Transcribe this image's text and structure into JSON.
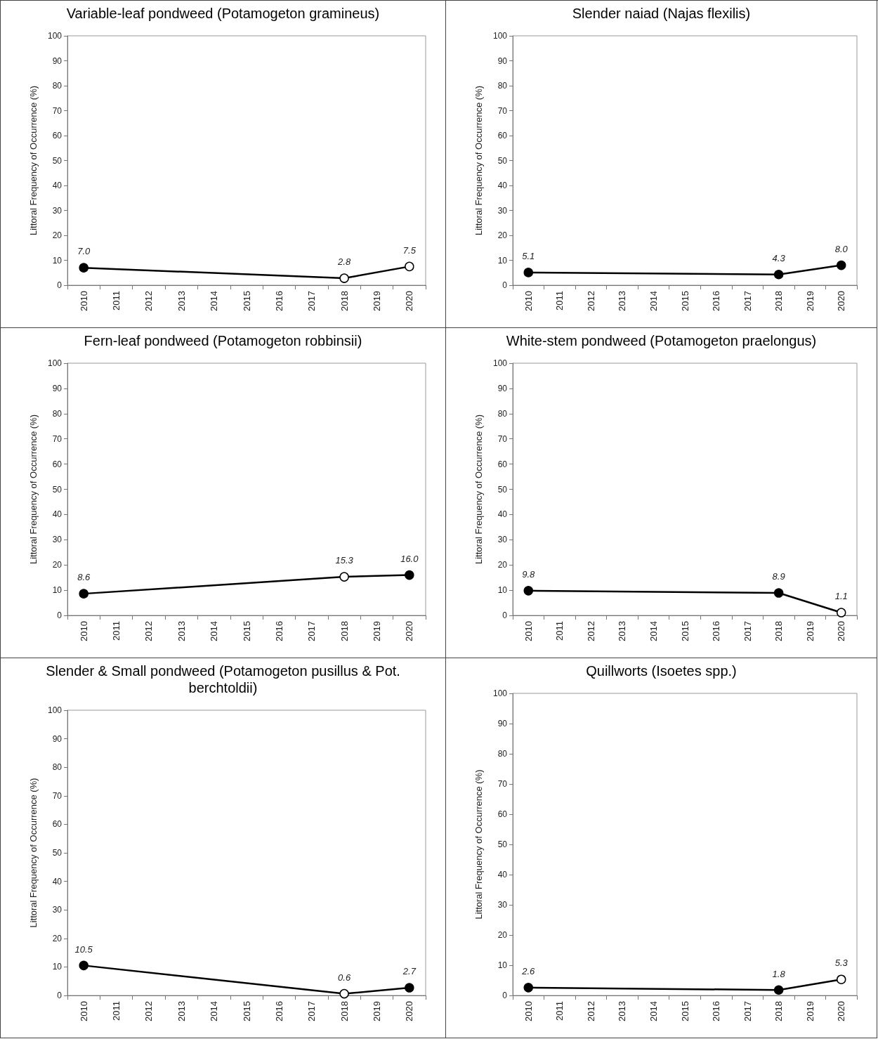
{
  "chart_data": [
    {
      "type": "line",
      "title": "Variable-leaf pondweed (Potamogeton gramineus)",
      "ylabel": "Littoral Frequency of Occurrence (%)",
      "categories": [
        "2010",
        "2011",
        "2012",
        "2013",
        "2014",
        "2015",
        "2016",
        "2017",
        "2018",
        "2019",
        "2020"
      ],
      "ylim": [
        0,
        100
      ],
      "yticks": [
        0,
        10,
        20,
        30,
        40,
        50,
        60,
        70,
        80,
        90,
        100
      ],
      "grid": false,
      "marker": "circle",
      "line_style": "solid",
      "series": [
        {
          "color": "#000000",
          "values": [
            7.0,
            null,
            null,
            null,
            null,
            null,
            null,
            null,
            2.8,
            null,
            7.5
          ],
          "colors": [
            "#000000",
            null,
            null,
            null,
            null,
            null,
            null,
            null,
            "#ffffff",
            null,
            "#ffffff"
          ],
          "value_labels": [
            "7.0",
            null,
            null,
            null,
            null,
            null,
            null,
            null,
            "2.8",
            null,
            "7.5"
          ]
        }
      ]
    },
    {
      "type": "line",
      "title": "Slender naiad (Najas flexilis)",
      "ylabel": "Littoral Frequency of Occurrence (%)",
      "categories": [
        "2010",
        "2011",
        "2012",
        "2013",
        "2014",
        "2015",
        "2016",
        "2017",
        "2018",
        "2019",
        "2020"
      ],
      "ylim": [
        0,
        100
      ],
      "yticks": [
        0,
        10,
        20,
        30,
        40,
        50,
        60,
        70,
        80,
        90,
        100
      ],
      "grid": false,
      "marker": "circle",
      "line_style": "solid",
      "series": [
        {
          "color": "#000000",
          "values": [
            5.1,
            null,
            null,
            null,
            null,
            null,
            null,
            null,
            4.3,
            null,
            8.0
          ],
          "colors": [
            "#000000",
            null,
            null,
            null,
            null,
            null,
            null,
            null,
            "#000000",
            null,
            "#000000"
          ],
          "value_labels": [
            "5.1",
            null,
            null,
            null,
            null,
            null,
            null,
            null,
            "4.3",
            null,
            "8.0"
          ]
        }
      ]
    },
    {
      "type": "line",
      "title": "Fern-leaf pondweed (Potamogeton robbinsii)",
      "ylabel": "Littoral Frequency of Occurrence (%)",
      "categories": [
        "2010",
        "2011",
        "2012",
        "2013",
        "2014",
        "2015",
        "2016",
        "2017",
        "2018",
        "2019",
        "2020"
      ],
      "ylim": [
        0,
        100
      ],
      "yticks": [
        0,
        10,
        20,
        30,
        40,
        50,
        60,
        70,
        80,
        90,
        100
      ],
      "grid": false,
      "marker": "circle",
      "line_style": "solid",
      "series": [
        {
          "color": "#000000",
          "values": [
            8.6,
            null,
            null,
            null,
            null,
            null,
            null,
            null,
            15.3,
            null,
            16.0
          ],
          "colors": [
            "#000000",
            null,
            null,
            null,
            null,
            null,
            null,
            null,
            "#ffffff",
            null,
            "#000000"
          ],
          "value_labels": [
            "8.6",
            null,
            null,
            null,
            null,
            null,
            null,
            null,
            "15.3",
            null,
            "16.0"
          ]
        }
      ]
    },
    {
      "type": "line",
      "title": "White-stem pondweed (Potamogeton praelongus)",
      "ylabel": "Littoral Frequency of Occurrence (%)",
      "categories": [
        "2010",
        "2011",
        "2012",
        "2013",
        "2014",
        "2015",
        "2016",
        "2017",
        "2018",
        "2019",
        "2020"
      ],
      "ylim": [
        0,
        100
      ],
      "yticks": [
        0,
        10,
        20,
        30,
        40,
        50,
        60,
        70,
        80,
        90,
        100
      ],
      "grid": false,
      "marker": "circle",
      "line_style": "solid",
      "series": [
        {
          "color": "#000000",
          "values": [
            9.8,
            null,
            null,
            null,
            null,
            null,
            null,
            null,
            8.9,
            null,
            1.1
          ],
          "colors": [
            "#000000",
            null,
            null,
            null,
            null,
            null,
            null,
            null,
            "#000000",
            null,
            "#ffffff"
          ],
          "value_labels": [
            "9.8",
            null,
            null,
            null,
            null,
            null,
            null,
            null,
            "8.9",
            null,
            "1.1"
          ]
        }
      ]
    },
    {
      "type": "line",
      "title": "Slender & Small pondweed (Potamogeton pusillus & Pot. berchtoldii)",
      "ylabel": "Littoral Frequency of Occurrence (%)",
      "categories": [
        "2010",
        "2011",
        "2012",
        "2013",
        "2014",
        "2015",
        "2016",
        "2017",
        "2018",
        "2019",
        "2020"
      ],
      "ylim": [
        0,
        100
      ],
      "yticks": [
        0,
        10,
        20,
        30,
        40,
        50,
        60,
        70,
        80,
        90,
        100
      ],
      "grid": false,
      "marker": "circle",
      "line_style": "solid",
      "series": [
        {
          "color": "#000000",
          "values": [
            10.5,
            null,
            null,
            null,
            null,
            null,
            null,
            null,
            0.6,
            null,
            2.7
          ],
          "colors": [
            "#000000",
            null,
            null,
            null,
            null,
            null,
            null,
            null,
            "#ffffff",
            null,
            "#000000"
          ],
          "value_labels": [
            "10.5",
            null,
            null,
            null,
            null,
            null,
            null,
            null,
            "0.6",
            null,
            "2.7"
          ]
        }
      ]
    },
    {
      "type": "line",
      "title": "Quillworts (Isoetes spp.)",
      "ylabel": "Littoral Frequency of Occurrence (%)",
      "categories": [
        "2010",
        "2011",
        "2012",
        "2013",
        "2014",
        "2015",
        "2016",
        "2017",
        "2018",
        "2019",
        "2020"
      ],
      "ylim": [
        0,
        100
      ],
      "yticks": [
        0,
        10,
        20,
        30,
        40,
        50,
        60,
        70,
        80,
        90,
        100
      ],
      "grid": false,
      "marker": "circle",
      "line_style": "solid",
      "series": [
        {
          "color": "#000000",
          "values": [
            2.6,
            null,
            null,
            null,
            null,
            null,
            null,
            null,
            1.8,
            null,
            5.3
          ],
          "colors": [
            "#000000",
            null,
            null,
            null,
            null,
            null,
            null,
            null,
            "#000000",
            null,
            "#ffffff"
          ],
          "value_labels": [
            "2.6",
            null,
            null,
            null,
            null,
            null,
            null,
            null,
            "1.8",
            null,
            "5.3"
          ]
        }
      ]
    }
  ]
}
